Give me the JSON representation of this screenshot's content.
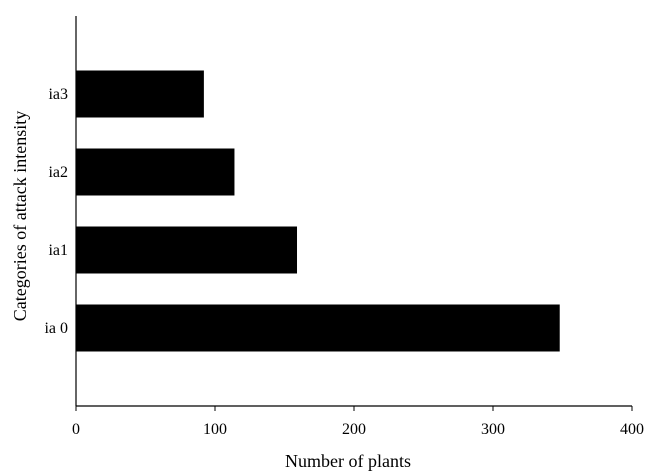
{
  "chart_data": {
    "type": "bar",
    "orientation": "horizontal",
    "categories": [
      "ia 0",
      "ia1",
      "ia2",
      "ia3"
    ],
    "values": [
      348,
      159,
      114,
      92
    ],
    "xlabel": "Number of plants",
    "ylabel": "Categories of attack intensity",
    "xlim": [
      0,
      400
    ],
    "xticks": [
      0,
      100,
      200,
      300,
      400
    ],
    "grid": false,
    "legend": "none",
    "bar_color": "#000000"
  }
}
